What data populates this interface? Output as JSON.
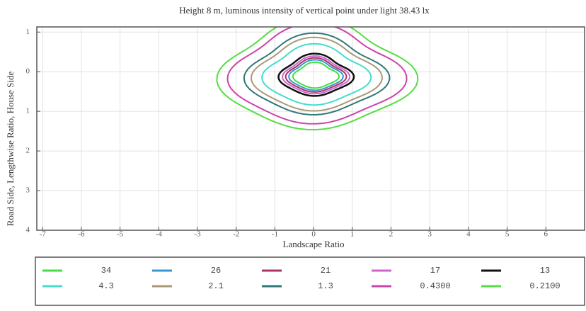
{
  "chart_data": {
    "type": "isoline",
    "title": "Height 8 m, luminous intensity of vertical point under light 38.43 lx",
    "x_label": "Landscape Ratio",
    "y_label": "Road Side, Lengthwise Ratio, House Side",
    "xlim": [
      -7.15,
      7
    ],
    "xticks": [
      -7,
      -6,
      -5,
      -4,
      -3,
      -2,
      -1,
      0,
      1,
      2,
      3,
      4,
      5,
      6
    ],
    "ylim": [
      4,
      -1.13
    ],
    "yticks": [
      {
        "value": -1,
        "label": "1"
      },
      0,
      1,
      2,
      3,
      4
    ],
    "grid": true,
    "levels": [
      34,
      26,
      21,
      17,
      13,
      4.3,
      2.1,
      1.3,
      0.43,
      0.21
    ],
    "level_labels": [
      "34",
      "26",
      "21",
      "17",
      "13",
      "4.3",
      "2.1",
      "1.3",
      "0.4300",
      "0.2100"
    ],
    "colors": [
      "#44dd44",
      "#3399cc",
      "#aa3366",
      "#cc66cc",
      "#111111",
      "#44ddcc",
      "#aa9977",
      "#337777",
      "#cc44aa",
      "#55dd44"
    ]
  }
}
